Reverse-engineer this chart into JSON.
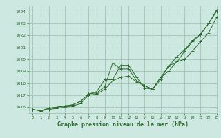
{
  "title": "Graphe pression niveau de la mer (hPa)",
  "xlim": [
    -0.5,
    23
  ],
  "ylim": [
    1015.5,
    1024.5
  ],
  "yticks": [
    1016,
    1017,
    1018,
    1019,
    1020,
    1021,
    1022,
    1023,
    1024
  ],
  "xticks": [
    0,
    1,
    2,
    3,
    4,
    5,
    6,
    7,
    8,
    9,
    10,
    11,
    12,
    13,
    14,
    15,
    16,
    17,
    18,
    19,
    20,
    21,
    22,
    23
  ],
  "bg_color": "#cce8e0",
  "grid_color": "#99bbaa",
  "line_color": "#2d6b2d",
  "series1": {
    "x": [
      0,
      1,
      2,
      3,
      4,
      5,
      6,
      7,
      8,
      9,
      10,
      11,
      12,
      13,
      14,
      15,
      16,
      17,
      18,
      19,
      20,
      21,
      22,
      23
    ],
    "y": [
      1015.8,
      1015.7,
      1015.8,
      1015.9,
      1016.0,
      1016.1,
      1016.3,
      1017.0,
      1017.1,
      1017.5,
      1018.2,
      1018.5,
      1018.6,
      1018.1,
      1017.8,
      1017.5,
      1018.3,
      1019.5,
      1019.7,
      1020.7,
      1021.5,
      1022.1,
      1023.0,
      1024.0
    ]
  },
  "series2": {
    "x": [
      0,
      1,
      2,
      3,
      4,
      5,
      6,
      7,
      8,
      9,
      10,
      11,
      12,
      13,
      14,
      15,
      16,
      17,
      18,
      19,
      20,
      21,
      22,
      23
    ],
    "y": [
      1015.8,
      1015.7,
      1015.9,
      1016.0,
      1016.1,
      1016.2,
      1016.5,
      1017.1,
      1017.2,
      1017.7,
      1019.7,
      1019.2,
      1019.2,
      1018.2,
      1017.8,
      1017.5,
      1018.5,
      1019.0,
      1019.8,
      1020.0,
      1020.7,
      1021.5,
      1022.2,
      1023.5
    ]
  },
  "series3": {
    "x": [
      0,
      1,
      2,
      3,
      4,
      5,
      6,
      7,
      8,
      9,
      10,
      11,
      12,
      13,
      14,
      15,
      16,
      17,
      18,
      19,
      20,
      21,
      22,
      23
    ],
    "y": [
      1015.8,
      1015.7,
      1015.9,
      1016.0,
      1016.1,
      1016.2,
      1016.5,
      1017.1,
      1017.3,
      1018.3,
      1018.3,
      1019.5,
      1019.5,
      1018.5,
      1017.6,
      1017.5,
      1018.5,
      1019.4,
      1020.2,
      1020.8,
      1021.6,
      1022.1,
      1023.0,
      1024.1
    ]
  }
}
